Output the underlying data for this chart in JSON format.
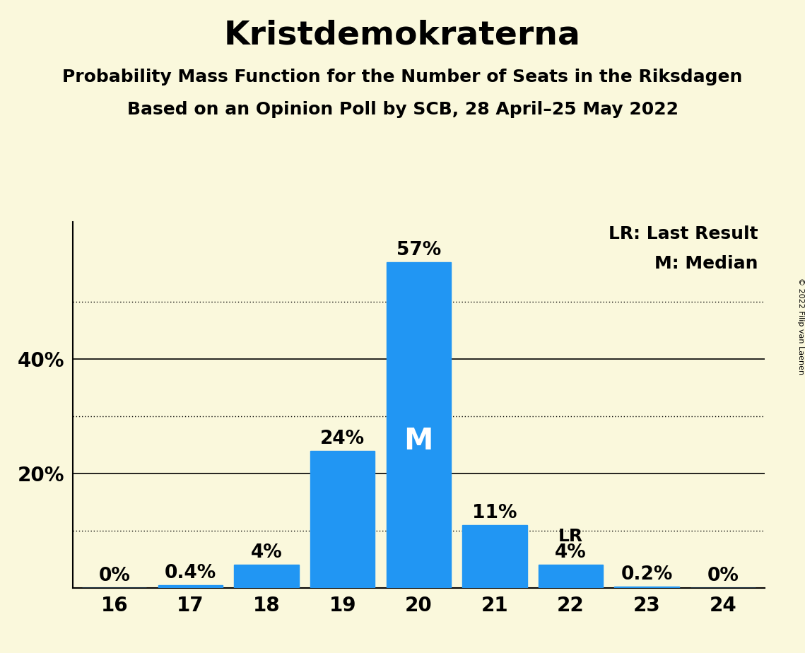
{
  "title": "Kristdemokraterna",
  "subtitle1": "Probability Mass Function for the Number of Seats in the Riksdagen",
  "subtitle2": "Based on an Opinion Poll by SCB, 28 April–25 May 2022",
  "copyright": "© 2022 Filip van Laenen",
  "categories": [
    16,
    17,
    18,
    19,
    20,
    21,
    22,
    23,
    24
  ],
  "values": [
    0.0,
    0.4,
    4.0,
    24.0,
    57.0,
    11.0,
    4.0,
    0.2,
    0.0
  ],
  "labels": [
    "0%",
    "0.4%",
    "4%",
    "24%",
    "57%",
    "11%",
    "4%",
    "0.2%",
    "0%"
  ],
  "bar_color": "#2196F3",
  "background_color": "#FAF8DC",
  "median_bar_index": 4,
  "lr_bar_index": 6,
  "median_label": "M",
  "lr_label": "LR",
  "legend_lr": "LR: Last Result",
  "legend_m": "M: Median",
  "solid_gridlines": [
    20,
    40
  ],
  "dotted_gridlines": [
    10,
    30,
    50
  ],
  "ylim": [
    0,
    64
  ],
  "title_fontsize": 34,
  "subtitle_fontsize": 18,
  "tick_fontsize": 20,
  "legend_fontsize": 18,
  "bar_label_fontsize": 19,
  "median_inside_fontsize": 30,
  "lr_above_fontsize": 18,
  "copyright_fontsize": 8
}
